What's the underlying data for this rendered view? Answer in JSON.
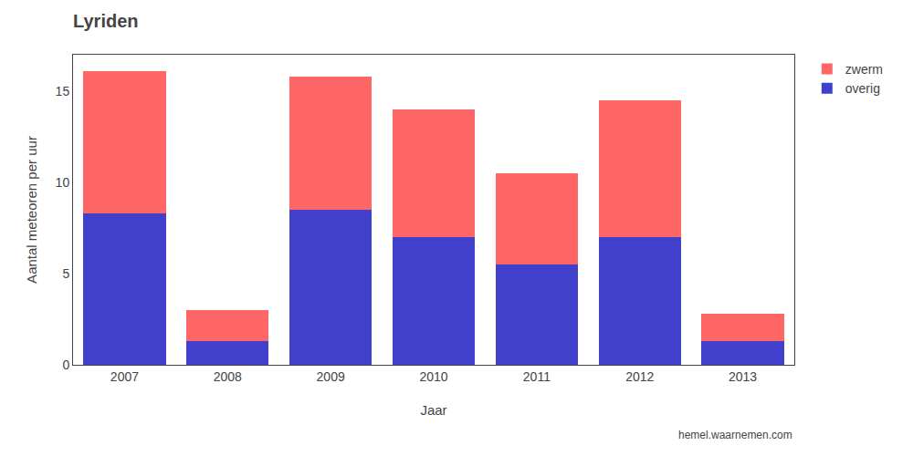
{
  "chart_data": {
    "type": "bar",
    "stacked": true,
    "title": "Lyriden",
    "xlabel": "Jaar",
    "ylabel": "Aantal meteoren per uur",
    "categories": [
      "2007",
      "2008",
      "2009",
      "2010",
      "2011",
      "2012",
      "2013"
    ],
    "series": [
      {
        "name": "overig",
        "color": "#4040cc",
        "values": [
          8.3,
          1.3,
          8.5,
          7.0,
          5.5,
          7.0,
          1.3
        ]
      },
      {
        "name": "zwerm",
        "color": "#ff6666",
        "values": [
          7.8,
          1.7,
          7.3,
          7.0,
          5.0,
          7.5,
          1.5
        ]
      }
    ],
    "ylim": [
      0,
      17
    ],
    "yticks": [
      0,
      5,
      10,
      15
    ],
    "grid": false,
    "legend": "upper right",
    "annotations": [
      "hemel.waarnemen.com"
    ]
  }
}
